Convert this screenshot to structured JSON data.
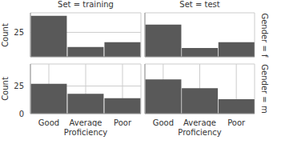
{
  "chart_data": {
    "type": "bar",
    "x_label": "Proficiency",
    "y_label": "Count",
    "columns": [
      "Set = training",
      "Set = test"
    ],
    "rows": [
      "Gender = f",
      "Gender = m"
    ],
    "categories": [
      "Good",
      "Average",
      "Poor"
    ],
    "panels": [
      [
        [
          42,
          10,
          15
        ],
        [
          33,
          9,
          15
        ]
      ],
      [
        [
          27,
          18,
          14
        ],
        [
          31,
          23,
          13
        ]
      ]
    ],
    "ylim": [
      0,
      45
    ],
    "yticks": [
      0,
      25
    ],
    "color": "#595959",
    "grid": true
  }
}
